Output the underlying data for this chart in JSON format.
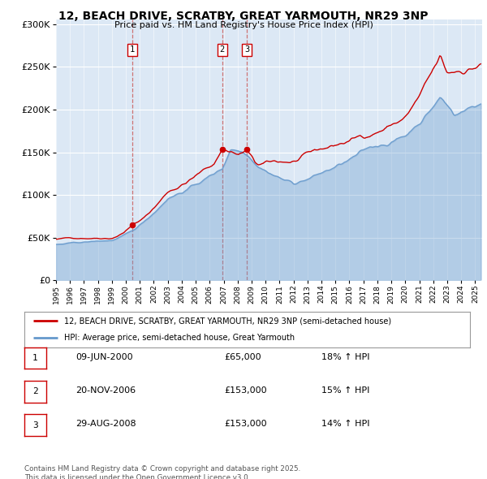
{
  "title": "12, BEACH DRIVE, SCRATBY, GREAT YARMOUTH, NR29 3NP",
  "subtitle": "Price paid vs. HM Land Registry's House Price Index (HPI)",
  "plot_bg_color": "#dce8f5",
  "red_line_label": "12, BEACH DRIVE, SCRATBY, GREAT YARMOUTH, NR29 3NP (semi-detached house)",
  "blue_line_label": "HPI: Average price, semi-detached house, Great Yarmouth",
  "sales": [
    {
      "num": 1,
      "date": "09-JUN-2000",
      "price": 65000,
      "pct": "18%",
      "direction": "↑"
    },
    {
      "num": 2,
      "date": "20-NOV-2006",
      "price": 153000,
      "pct": "15%",
      "direction": "↑"
    },
    {
      "num": 3,
      "date": "29-AUG-2008",
      "price": 153000,
      "pct": "14%",
      "direction": "↑"
    }
  ],
  "sale_dates_decimal": [
    2000.44,
    2006.89,
    2008.66
  ],
  "sale_prices": [
    65000,
    153000,
    153000
  ],
  "footer": "Contains HM Land Registry data © Crown copyright and database right 2025.\nThis data is licensed under the Open Government Licence v3.0.",
  "ylim_max": 300000,
  "xlim_start": 1995.0,
  "xlim_end": 2025.5,
  "red_color": "#cc0000",
  "blue_color": "#6699cc",
  "dashed_color": "#cc6666"
}
